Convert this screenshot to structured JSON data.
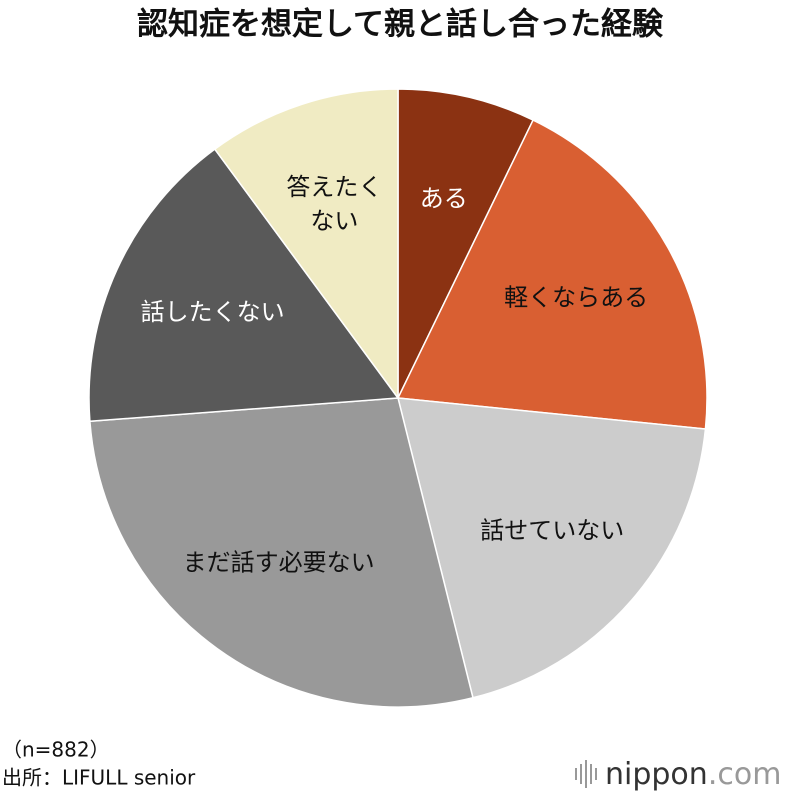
{
  "chart_data": {
    "type": "pie",
    "title": "認知症を想定して親と話し合った経験",
    "categories": [
      "ある",
      "軽くならある",
      "話せていない",
      "まだ話す必要ない",
      "話したくない",
      "答えたくない"
    ],
    "values": [
      7.2,
      19.4,
      19.5,
      27.7,
      16.1,
      10.1
    ],
    "colors": [
      "#8b3212",
      "#d95f32",
      "#cccccc",
      "#999999",
      "#595959",
      "#f0ebc3"
    ],
    "notes": [
      "（n=882）",
      "出所：LIFULL senior"
    ]
  },
  "logo": "nippon.com"
}
